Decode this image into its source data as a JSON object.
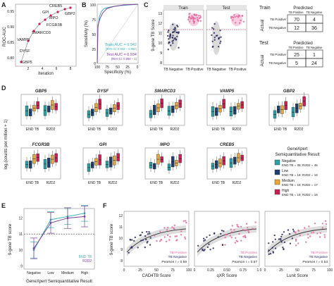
{
  "panel_labels": [
    "A",
    "B",
    "C",
    "D",
    "E",
    "F"
  ],
  "colors": {
    "end_tb": "#2d9ea3",
    "negative": "#2d9ea3",
    "low": "#1f3f6b",
    "medium": "#e8a838",
    "high": "#c2224f",
    "pink": "#e06aa0",
    "navy": "#2a2d5e",
    "purple": "#7e3fa0",
    "teal": "#39b3b5"
  },
  "panel_a": {
    "ylabel": "ROC-AUC",
    "xlabel": "Iteration",
    "ytick_labels": [
      "0.95",
      "0.90",
      "0.85",
      "0.80"
    ],
    "xtick_labels": [
      "2",
      "4",
      "6",
      "8"
    ],
    "gene_labels": [
      "GBP5",
      "VAMP5",
      "DYSF",
      "SMARCD3",
      "FCGR3B",
      "MPO",
      "GPI",
      "CREB5",
      "GBP2"
    ]
  },
  "panel_b": {
    "ylabel": "Sensitivity (%)",
    "xlabel": "Specificity (%)",
    "ytick_labels": [
      "100",
      "75",
      "50",
      "25",
      "0"
    ],
    "xtick_labels": [
      "100",
      "75",
      "50",
      "25",
      "0"
    ],
    "train_auc": "Train AUC = 0.942",
    "train_ci": "(95% CI: 0.902 – 0.982)",
    "test_auc": "Test AUC = 0.934",
    "test_ci": "(95% CI: 0.864 – 1)"
  },
  "panel_c": {
    "ylabel": "9-gene TB Score",
    "ytick_labels": [
      "13",
      "12",
      "11",
      "10",
      "9",
      "8"
    ],
    "train_title": "Train",
    "test_title": "Test",
    "xtick_labels": [
      "TB Negative",
      "TB Positive"
    ],
    "train_header": "Train",
    "test_header": "Test",
    "predicted": "Predicted",
    "actual": "Actual",
    "col_tb_positive": "TB Positive",
    "col_tb_negative": "TB Negative",
    "row_tb_positive": "TB Positive",
    "row_tb_negative": "TB Negative",
    "train_matrix": [
      [
        "70",
        "4"
      ],
      [
        "12",
        "36"
      ]
    ],
    "test_matrix": [
      [
        "25",
        "1"
      ],
      [
        "5",
        "24"
      ]
    ]
  },
  "panel_d": {
    "ylabel": "log₂(counts per million + 1)",
    "group_labels": [
      "END TB",
      "R2D2"
    ],
    "genes": [
      "GBP5",
      "DYSF",
      "SMARCD3",
      "VAMP5",
      "GBP2",
      "FCGR3B",
      "GPI",
      "MPO",
      "CREB5"
    ],
    "legend_title_1": "GeneXpert",
    "legend_title_2": "Semiquantitative Result",
    "legend_items": [
      {
        "name": "Negative",
        "detail": "END TB = 36; R2D2 = 46"
      },
      {
        "name": "Low",
        "detail": "END TB = 18; R2D2 = 18"
      },
      {
        "name": "Medium",
        "detail": "END TB = 18; R2D2 = 17"
      },
      {
        "name": "High",
        "detail": "END TB = 19; R2D2 = 19"
      }
    ]
  },
  "panel_e": {
    "ylabel": "9-gene TB score",
    "xlabel": "GeneXpert Semiquantitative Result",
    "ytick_labels": [
      "12",
      "11",
      "10",
      "9"
    ],
    "legend_items": [
      "END TB",
      "R2D2"
    ],
    "chart_data": {
      "type": "line",
      "categories": [
        "Negative",
        "Low",
        "Medium",
        "High"
      ],
      "ylim": [
        8.8,
        12.6
      ],
      "series": [
        {
          "name": "END TB",
          "values": [
            10.0,
            11.9,
            12.1,
            12.3
          ]
        },
        {
          "name": "R2D2",
          "values": [
            10.1,
            11.7,
            12.0,
            12.1
          ]
        }
      ]
    }
  },
  "panel_f": {
    "ylabel": "9-gene TB score",
    "ytick_labels": [
      "12",
      "11",
      "10",
      "9",
      "8"
    ],
    "plots": [
      {
        "xlabel": "CAD4TB Score",
        "xtick_labels": [
          "0",
          "25",
          "50",
          "75",
          "100"
        ],
        "pearson": "Pearson r = 0.59"
      },
      {
        "xlabel": "qXR Score",
        "xtick_labels": [
          "0",
          "0.25",
          "0.50",
          "0.75",
          "1.0"
        ],
        "pearson": "Pearson r = 0.57"
      },
      {
        "xlabel": "Lunit Score",
        "xtick_labels": [
          "0",
          "25",
          "50",
          "75",
          "100"
        ],
        "pearson": "Pearson r = 0.53"
      }
    ],
    "legend_items": [
      "TB Positive",
      "TB Negative"
    ]
  }
}
